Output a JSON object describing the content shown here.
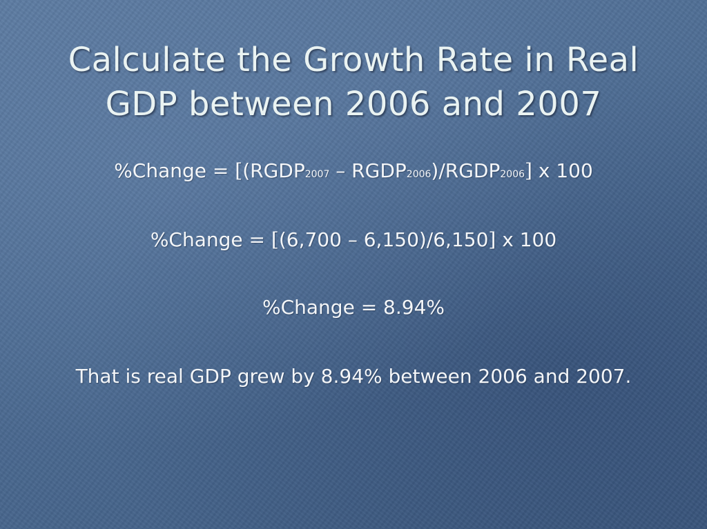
{
  "slide": {
    "title": "Calculate the Growth Rate in Real GDP between 2006 and 2007",
    "formula": {
      "lhs": "%Change = ",
      "open_bracket": "[",
      "part1": "(RGDP",
      "sub1": "2007",
      "part2": " – RGDP",
      "sub2": "2006",
      "part3": ")/RGDP",
      "sub3": "2006",
      "close_bracket": "]",
      "tail": " x 100"
    },
    "substitution": {
      "lhs": "%Change = ",
      "open_bracket": "[",
      "middle": "(6,700 – 6,150)/6,150",
      "close_bracket": "]",
      "tail": " x 100"
    },
    "result": "%Change = 8.94%",
    "conclusion": "That is real GDP grew by 8.94% between 2006 and 2007."
  }
}
